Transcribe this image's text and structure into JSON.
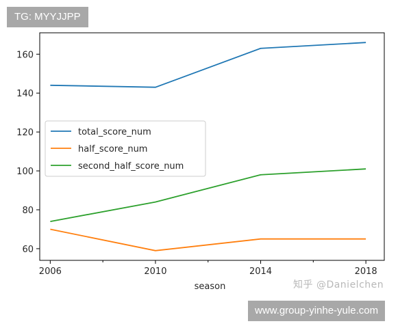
{
  "overlay": {
    "top_badge": "TG: MYYJJPP",
    "bottom_badge": "www.group-yinhe-yule.com",
    "watermark": "知乎 @Danielchen"
  },
  "chart_data": {
    "type": "line",
    "xlabel": "season",
    "ylabel": "",
    "x": [
      2006,
      2010,
      2014,
      2018
    ],
    "xticks": [
      2006,
      2010,
      2014,
      2018
    ],
    "xticks_minor": [
      2008,
      2012,
      2016
    ],
    "yticks": [
      60,
      80,
      100,
      120,
      140,
      160
    ],
    "xlim": [
      2005.6,
      2018.7
    ],
    "ylim": [
      54,
      171
    ],
    "grid": false,
    "legend_position": "center-left",
    "series": [
      {
        "name": "total_score_num",
        "color": "#1f77b4",
        "values": [
          144,
          143,
          163,
          166
        ]
      },
      {
        "name": "half_score_num",
        "color": "#ff7f0e",
        "values": [
          70,
          59,
          65,
          65
        ]
      },
      {
        "name": "second_half_score_num",
        "color": "#2ca02c",
        "values": [
          74,
          84,
          98,
          101
        ]
      }
    ]
  }
}
